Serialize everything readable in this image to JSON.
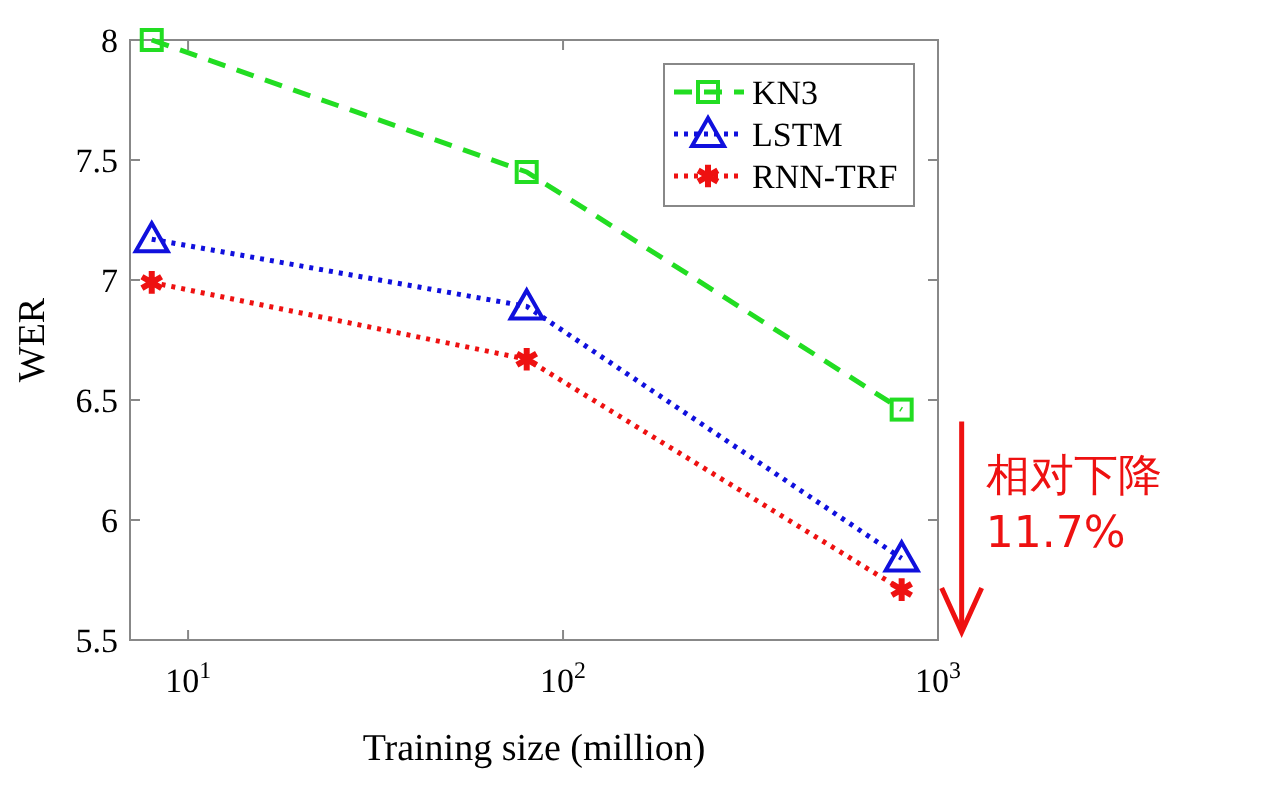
{
  "chart_data": {
    "type": "line",
    "xlabel": "Training size (million)",
    "ylabel": "WER",
    "log": "x",
    "x": [
      8,
      80,
      800
    ],
    "xlim": [
      7,
      1000
    ],
    "xticks": [
      {
        "value": 10,
        "label": "10$^{1}$"
      },
      {
        "value": 100,
        "label": "10$^{2}$"
      },
      {
        "value": 1000,
        "label": "10$^{3}$"
      }
    ],
    "ylim": [
      5.5,
      8
    ],
    "yticks": [
      5.5,
      6,
      6.5,
      7,
      7.5,
      8
    ],
    "legend": "top right",
    "grid": false,
    "series": [
      {
        "name": "KN3",
        "color": "#22dd22",
        "values": [
          8.0,
          7.45,
          6.46
        ],
        "marker": "square",
        "line_style": "dashed"
      },
      {
        "name": "LSTM",
        "color": "#1010dd",
        "values": [
          7.17,
          6.89,
          5.84
        ],
        "marker": "triangle",
        "line_style": "dotted"
      },
      {
        "name": "RNN-TRF",
        "color": "#ee1111",
        "values": [
          6.99,
          6.67,
          5.71
        ],
        "marker": "cross",
        "line_style": "dotted"
      }
    ],
    "annotations": [
      {
        "text": "相对下降 11.7%",
        "x": 800,
        "y": 6.46
      }
    ]
  }
}
